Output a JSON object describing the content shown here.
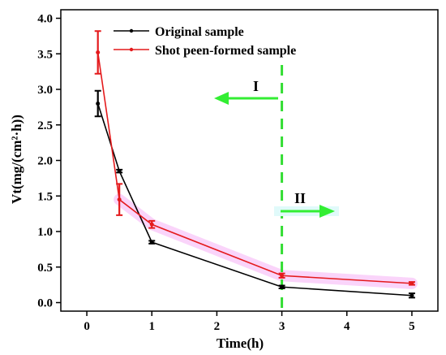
{
  "chart_data": {
    "type": "line",
    "title": "",
    "xlabel": "Time(h)",
    "ylabel": "Vt(mg/(cm²·h))",
    "xlim": [
      -0.4,
      5.4
    ],
    "ylim": [
      -0.12,
      4.12
    ],
    "x_ticks": [
      0,
      1,
      2,
      3,
      4,
      5
    ],
    "y_ticks": [
      0.0,
      0.5,
      1.0,
      1.5,
      2.0,
      2.5,
      3.0,
      3.5,
      4.0
    ],
    "x_tick_labels": [
      "0",
      "1",
      "2",
      "3",
      "4",
      "5"
    ],
    "y_tick_labels": [
      "0.0",
      "0.5",
      "1.0",
      "1.5",
      "2.0",
      "2.5",
      "3.0",
      "3.5",
      "4.0"
    ],
    "legend_position": "top-left",
    "series": [
      {
        "name": "Original sample",
        "color": "#000000",
        "x": [
          0.17,
          0.5,
          1,
          3,
          5
        ],
        "values": [
          2.8,
          1.85,
          0.85,
          0.22,
          0.1
        ],
        "error": [
          0.18,
          0.02,
          0.02,
          0.02,
          0.03
        ]
      },
      {
        "name": "Shot peen-formed sample",
        "color": "#e41a1c",
        "x": [
          0.17,
          0.5,
          1,
          3,
          5
        ],
        "values": [
          3.52,
          1.45,
          1.1,
          0.38,
          0.27
        ],
        "error": [
          0.3,
          0.22,
          0.05,
          0.03,
          0.02
        ]
      }
    ],
    "annotations": {
      "divider_x": 3,
      "region_labels": [
        "I",
        "II"
      ]
    },
    "colors": {
      "divider": "#33dd33",
      "arrow": "#33ee33",
      "highlight": "#f4a0f4"
    }
  }
}
